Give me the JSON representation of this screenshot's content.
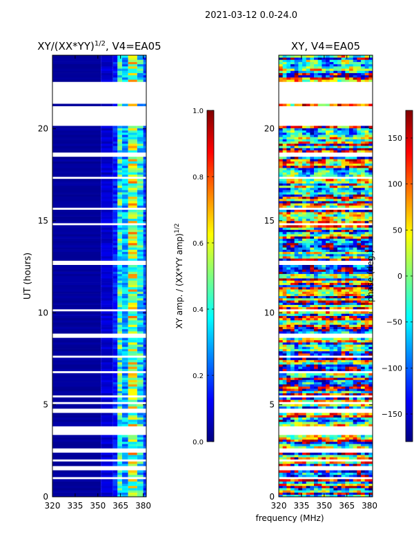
{
  "figure": {
    "suptitle": "2021-03-12 0.0-24.0",
    "shared_xlabel": "frequency (MHz)"
  },
  "colors": {
    "jet": [
      "#00007f",
      "#0000ff",
      "#007fff",
      "#00ffff",
      "#7fff7f",
      "#ffff00",
      "#ff7f00",
      "#ff0000",
      "#7f0000"
    ],
    "flag_white": "#ffffff",
    "axis": "#000000"
  },
  "chart_data": [
    {
      "type": "heatmap",
      "title_prefix": "XY/(XX*YY)",
      "title_exponent": "1/2",
      "title_suffix": ", V4=EA05",
      "xlabel": "",
      "ylabel": "UT (hours)",
      "xlim": [
        320,
        382
      ],
      "ylim": [
        0,
        24
      ],
      "xticks": [
        320,
        335,
        350,
        365,
        380
      ],
      "yticks": [
        0,
        5,
        10,
        15,
        20
      ],
      "channel_bands_mhz": [
        [
          320,
          352
        ],
        [
          352,
          360
        ],
        [
          360,
          363
        ],
        [
          363,
          366
        ],
        [
          366,
          370
        ],
        [
          370,
          376
        ],
        [
          376,
          380
        ],
        [
          380,
          382
        ]
      ],
      "band_levels": [
        0.03,
        0.08,
        0.15,
        0.42,
        0.3,
        0.55,
        0.38,
        0.2
      ],
      "flagged_hours": [
        [
          21.3,
          22.5
        ],
        [
          20.1,
          21.2
        ],
        [
          3.4,
          3.9
        ],
        [
          2.35,
          2.55
        ],
        [
          0.0,
          0.02
        ]
      ],
      "colorbar": {
        "label": "XY amp. / (XX*YY amp)",
        "label_exponent": "1/2",
        "vmin": 0.0,
        "vmax": 1.0,
        "ticks": [
          "0.0",
          "0.2",
          "0.4",
          "0.6",
          "0.8",
          "1.0"
        ]
      }
    },
    {
      "type": "heatmap",
      "title": "XY, V4=EA05",
      "xlabel": "",
      "ylabel": "",
      "xlim": [
        320,
        382
      ],
      "ylim": [
        0,
        24
      ],
      "xticks": [
        320,
        335,
        350,
        365,
        380
      ],
      "yticks": [
        0,
        5,
        10,
        15,
        20
      ],
      "value_range_deg": [
        -180,
        180
      ],
      "flagged_hours": [
        [
          21.3,
          22.5
        ],
        [
          20.1,
          21.2
        ],
        [
          3.4,
          3.9
        ],
        [
          2.35,
          2.55
        ],
        [
          0.0,
          0.02
        ]
      ],
      "colorbar": {
        "label": "phase (deg.)",
        "vmin": -180,
        "vmax": 180,
        "ticks": [
          "-150",
          "-100",
          "-50",
          "0",
          "50",
          "100",
          "150"
        ]
      }
    }
  ]
}
